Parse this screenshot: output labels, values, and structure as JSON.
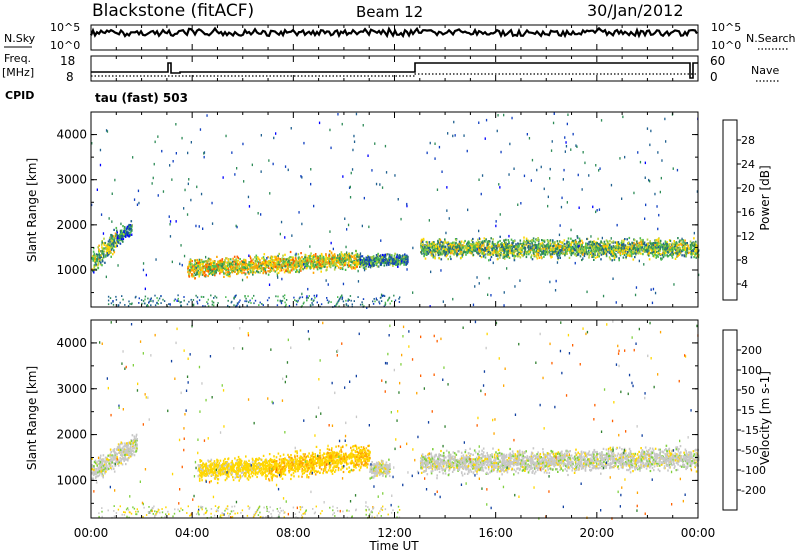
{
  "header": {
    "station": "Blackstone (fitACF)",
    "beam": "Beam 12",
    "date": "30/Jan/2012"
  },
  "noise_panel": {
    "left_label": "N.Sky",
    "right_label": "N.Search",
    "ticks": [
      "10^5",
      "10^0"
    ],
    "right_ticks": [
      "10^5",
      "10^0"
    ]
  },
  "freq_panel": {
    "freq_label": "Freq.",
    "freq_unit": "[MHz]",
    "freq_ticks": [
      "18",
      "8"
    ],
    "nave_label": "Nave",
    "nave_ticks": [
      "60",
      "0"
    ],
    "cpid_label": "CPID",
    "cpid_text": "tau (fast) 503"
  },
  "chart_data": [
    {
      "type": "heatmap",
      "name": "power",
      "ylabel": "Slant Range [km]",
      "yticks": [
        "4000",
        "3000",
        "2000",
        "1000"
      ],
      "ylim": [
        180,
        4500
      ],
      "xlim": [
        0,
        24
      ],
      "colorbar_label": "Power [dB]",
      "colorbar_ticks": [
        "28",
        "24",
        "20",
        "16",
        "12",
        "8",
        "4"
      ],
      "colorbar_colors": [
        "#0000ff",
        "#1040c0",
        "#206090",
        "#2e8b57",
        "#4cbb50",
        "#b0d040",
        "#ffd700",
        "#ffa500",
        "#ff6000",
        "#ff0000"
      ],
      "bands": [
        {
          "x": [
            0.0,
            1.0
          ],
          "center": [
            1200,
            1700
          ],
          "width": 380,
          "value": 14
        },
        {
          "x": [
            1.0,
            1.6
          ],
          "center": [
            1700,
            1950
          ],
          "width": 250,
          "value": 8
        },
        {
          "x": [
            3.8,
            10.6
          ],
          "center": [
            1050,
            1250
          ],
          "width": 300,
          "value": 18
        },
        {
          "x": [
            10.6,
            12.5
          ],
          "center": [
            1200,
            1250
          ],
          "width": 200,
          "value": 10
        },
        {
          "x": [
            13.0,
            24.0
          ],
          "center": [
            1500,
            1500
          ],
          "width": 320,
          "value": 14
        }
      ]
    },
    {
      "type": "heatmap",
      "name": "velocity",
      "ylabel": "Slant Range [km]",
      "yticks": [
        "4000",
        "3000",
        "2000",
        "1000"
      ],
      "ylim": [
        180,
        4500
      ],
      "xlim": [
        0,
        24
      ],
      "xlabel": "Time UT",
      "xticks": [
        "00:00",
        "04:00",
        "08:00",
        "12:00",
        "16:00",
        "20:00",
        "00:00"
      ],
      "colorbar_label": "Velocity [m s-1]",
      "colorbar_ticks": [
        "200",
        "100",
        "50",
        "15",
        "-15",
        "-50",
        "-100",
        "-200"
      ],
      "colorbar_colors": [
        "#ff0000",
        "#ff6000",
        "#ffa500",
        "#ffd700",
        "#c8c8c8",
        "#80d040",
        "#308030",
        "#1040a0",
        "#0000ff"
      ],
      "bands": [
        {
          "x": [
            0.0,
            1.8
          ],
          "center": [
            1200,
            1800
          ],
          "width": 380,
          "value": 0
        },
        {
          "x": [
            4.2,
            7.0
          ],
          "center": [
            1250,
            1300
          ],
          "width": 350,
          "value": -30
        },
        {
          "x": [
            7.0,
            11.0
          ],
          "center": [
            1300,
            1550
          ],
          "width": 400,
          "value": -40
        },
        {
          "x": [
            11.0,
            11.8
          ],
          "center": [
            1250,
            1300
          ],
          "width": 250,
          "value": 0
        },
        {
          "x": [
            13.0,
            24.0
          ],
          "center": [
            1400,
            1500
          ],
          "width": 380,
          "value": 0
        }
      ]
    }
  ]
}
